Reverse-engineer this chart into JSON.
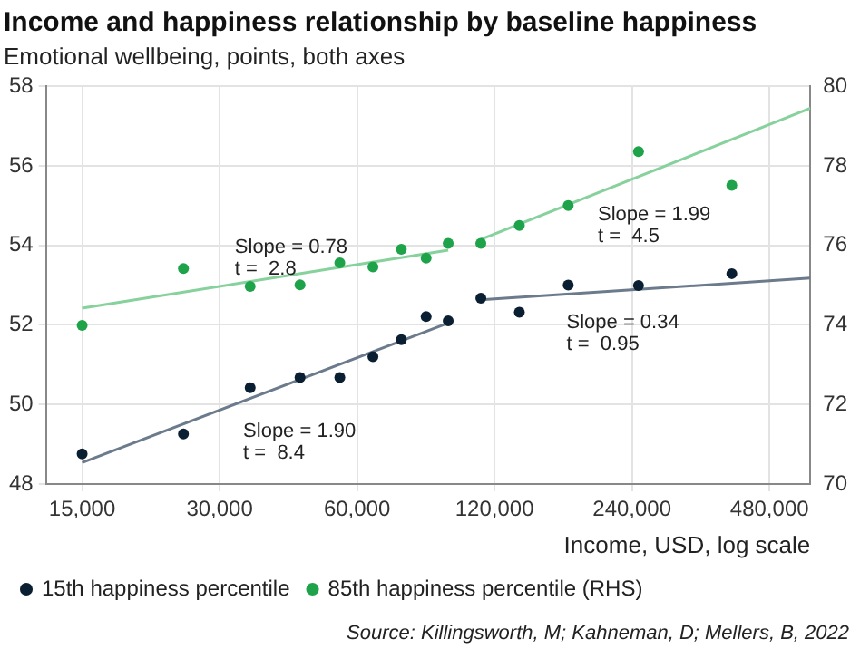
{
  "chart_data": {
    "type": "scatter",
    "title": "Income and happiness relationship by baseline happiness",
    "subtitle": "Emotional wellbeing, points, both axes",
    "xlabel": "Income, USD, log scale",
    "log": "x",
    "grid": true,
    "legend": "bottom left",
    "x": [
      15000,
      25000,
      35000,
      45000,
      55000,
      65000,
      75000,
      85000,
      95000,
      112000,
      136000,
      174000,
      248000,
      397000
    ],
    "series": [
      {
        "name": "15th happiness percentile",
        "color": "#0b1f33",
        "marker": "circle",
        "values": [
          48.76,
          49.26,
          50.42,
          50.68,
          50.68,
          51.2,
          51.63,
          52.21,
          52.1,
          52.67,
          52.32,
          53.0,
          52.99,
          53.29
        ]
      },
      {
        "name": "85th happiness percentile (RHS)",
        "color": "#1fa34a",
        "marker": "circle",
        "axis": "y2",
        "values": [
          73.99,
          75.42,
          74.97,
          75.01,
          75.56,
          75.46,
          75.9,
          75.68,
          76.05,
          76.05,
          76.5,
          77.0,
          78.36,
          77.51
        ]
      },
      {
        "type": "line",
        "color": "#6b7b8c",
        "line_style": "solid",
        "x": [
          15000,
          95000
        ],
        "values": [
          48.54,
          52.05
        ]
      },
      {
        "type": "line",
        "color": "#6b7b8c",
        "line_style": "solid",
        "x": [
          112000,
          590000
        ],
        "values": [
          52.63,
          53.18
        ]
      },
      {
        "type": "line",
        "color": "#86d19c",
        "line_style": "solid",
        "axis": "y2",
        "x": [
          15000,
          95000
        ],
        "values": [
          74.42,
          75.88
        ]
      },
      {
        "type": "line",
        "color": "#86d19c",
        "line_style": "solid",
        "axis": "y2",
        "x": [
          112000,
          590000
        ],
        "values": [
          76.15,
          79.45
        ]
      }
    ],
    "xlim": [
      12500,
      590000
    ],
    "xticks": [
      {
        "value": 15000,
        "label": "15,000"
      },
      {
        "value": 30000,
        "label": "30,000"
      },
      {
        "value": 60000,
        "label": "60,000"
      },
      {
        "value": 120000,
        "label": "120,000"
      },
      {
        "value": 240000,
        "label": "240,000"
      },
      {
        "value": 480000,
        "label": "480,000"
      }
    ],
    "ylim": [
      48,
      58
    ],
    "yticks": [
      48,
      50,
      52,
      54,
      56,
      58
    ],
    "y2lim": [
      70,
      80
    ],
    "y2ticks": [
      70,
      72,
      74,
      76,
      78,
      80
    ],
    "annotations": [
      "Slope = 0.78\nt =  2.8",
      "Slope = 1.90\nt =  8.4",
      "Slope = 1.99\nt =  4.5",
      "Slope = 0.34\nt =  0.95",
      "Source: Killingsworth, M; Kahneman, D; Mellers, B, 2022"
    ]
  }
}
